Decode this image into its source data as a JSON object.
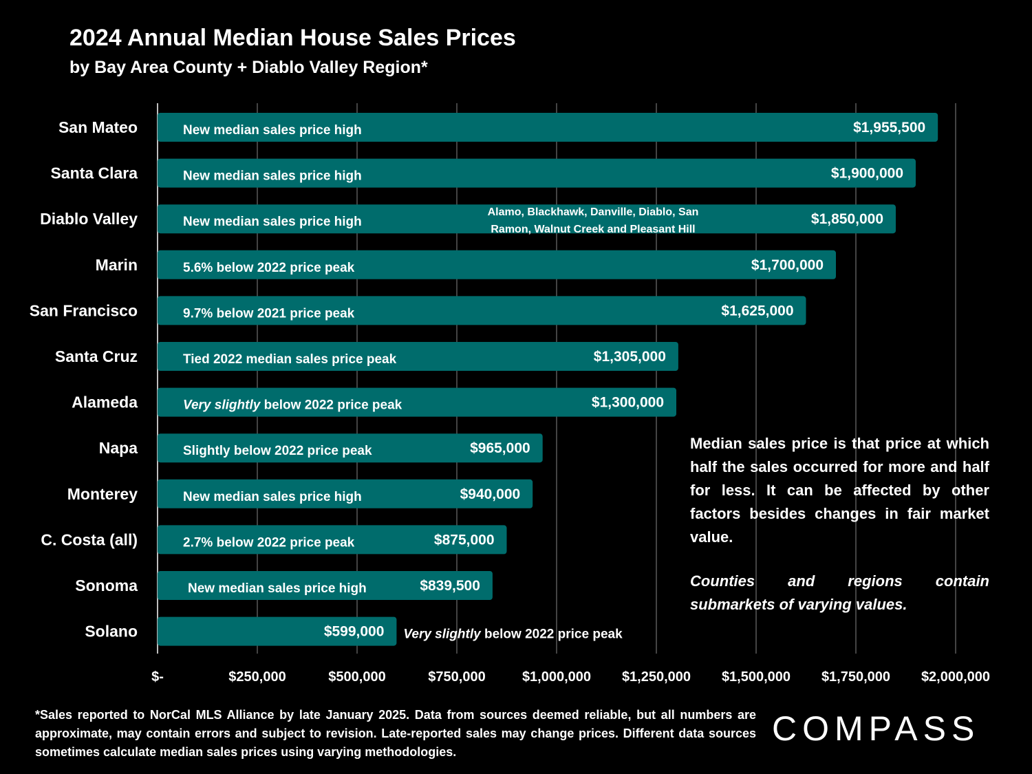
{
  "header": {
    "title": "2024 Annual Median House Sales Prices",
    "subtitle": "by Bay Area County + Diablo Valley Region*"
  },
  "chart_data": {
    "type": "bar",
    "orientation": "horizontal",
    "title": "2024 Annual Median House Sales Prices",
    "subtitle": "by Bay Area County + Diablo Valley Region*",
    "categories": [
      "San Mateo",
      "Santa Clara",
      "Diablo Valley",
      "Marin",
      "San Francisco",
      "Santa Cruz",
      "Alameda",
      "Napa",
      "Monterey",
      "C. Costa (all)",
      "Sonoma",
      "Solano"
    ],
    "values": [
      1955500,
      1900000,
      1850000,
      1700000,
      1625000,
      1305000,
      1300000,
      965000,
      940000,
      875000,
      839500,
      599000
    ],
    "value_labels": [
      "$1,955,500",
      "$1,900,000",
      "$1,850,000",
      "$1,700,000",
      "$1,625,000",
      "$1,305,000",
      "$1,300,000",
      "$965,000",
      "$940,000",
      "$875,000",
      "$839,500",
      "$599,000"
    ],
    "annotations": [
      {
        "lead": "",
        "text": "New median sales price high"
      },
      {
        "lead": "",
        "text": "New median sales price high"
      },
      {
        "lead": "",
        "text": "New median sales price high"
      },
      {
        "lead": "",
        "text": "5.6% below 2022 price peak"
      },
      {
        "lead": "",
        "text": "9.7% below 2021 price peak"
      },
      {
        "lead": "",
        "text": "Tied 2022 median sales price peak"
      },
      {
        "lead": "Very slightly",
        "text": " below 2022 price peak"
      },
      {
        "lead": "",
        "text": "Slightly below 2022 price peak"
      },
      {
        "lead": "",
        "text": "New median sales price high"
      },
      {
        "lead": "",
        "text": "2.7% below 2022 price peak"
      },
      {
        "lead": "",
        "text": "New median sales price high"
      },
      {
        "lead": "Very slightly",
        "text": " below 2022 price peak"
      }
    ],
    "diablo_valley_note": [
      "Alamo, Blackhawk, Danville, Diablo, San",
      "Ramon, Walnut Creek and Pleasant Hill"
    ],
    "xlim": [
      0,
      2000000
    ],
    "x_ticks": [
      0,
      250000,
      500000,
      750000,
      1000000,
      1250000,
      1500000,
      1750000,
      2000000
    ],
    "x_tick_labels": [
      "$-",
      "$250,000",
      "$500,000",
      "$750,000",
      "$1,000,000",
      "$1,250,000",
      "$1,500,000",
      "$1,750,000",
      "$2,000,000"
    ],
    "grid": true,
    "bar_color": "#006C6C"
  },
  "note": {
    "definition": "Median sales price is that price at which half the sales occurred for more and half for less. It can be affected by other factors besides changes in fair market value.",
    "submarkets": "Counties and regions contain submarkets of varying values."
  },
  "footnote": "*Sales reported to NorCal MLS Alliance by late January 2025. Data from sources deemed reliable, but all numbers are approximate, may contain errors and subject to revision. Late-reported sales may change prices. Different data sources sometimes calculate median sales prices using varying methodologies.",
  "brand": {
    "logo_text": "COMPASS"
  },
  "colors": {
    "background": "#000000",
    "bar": "#006C6C",
    "text": "#FFFFFF",
    "grid": "#5A5A5A"
  }
}
